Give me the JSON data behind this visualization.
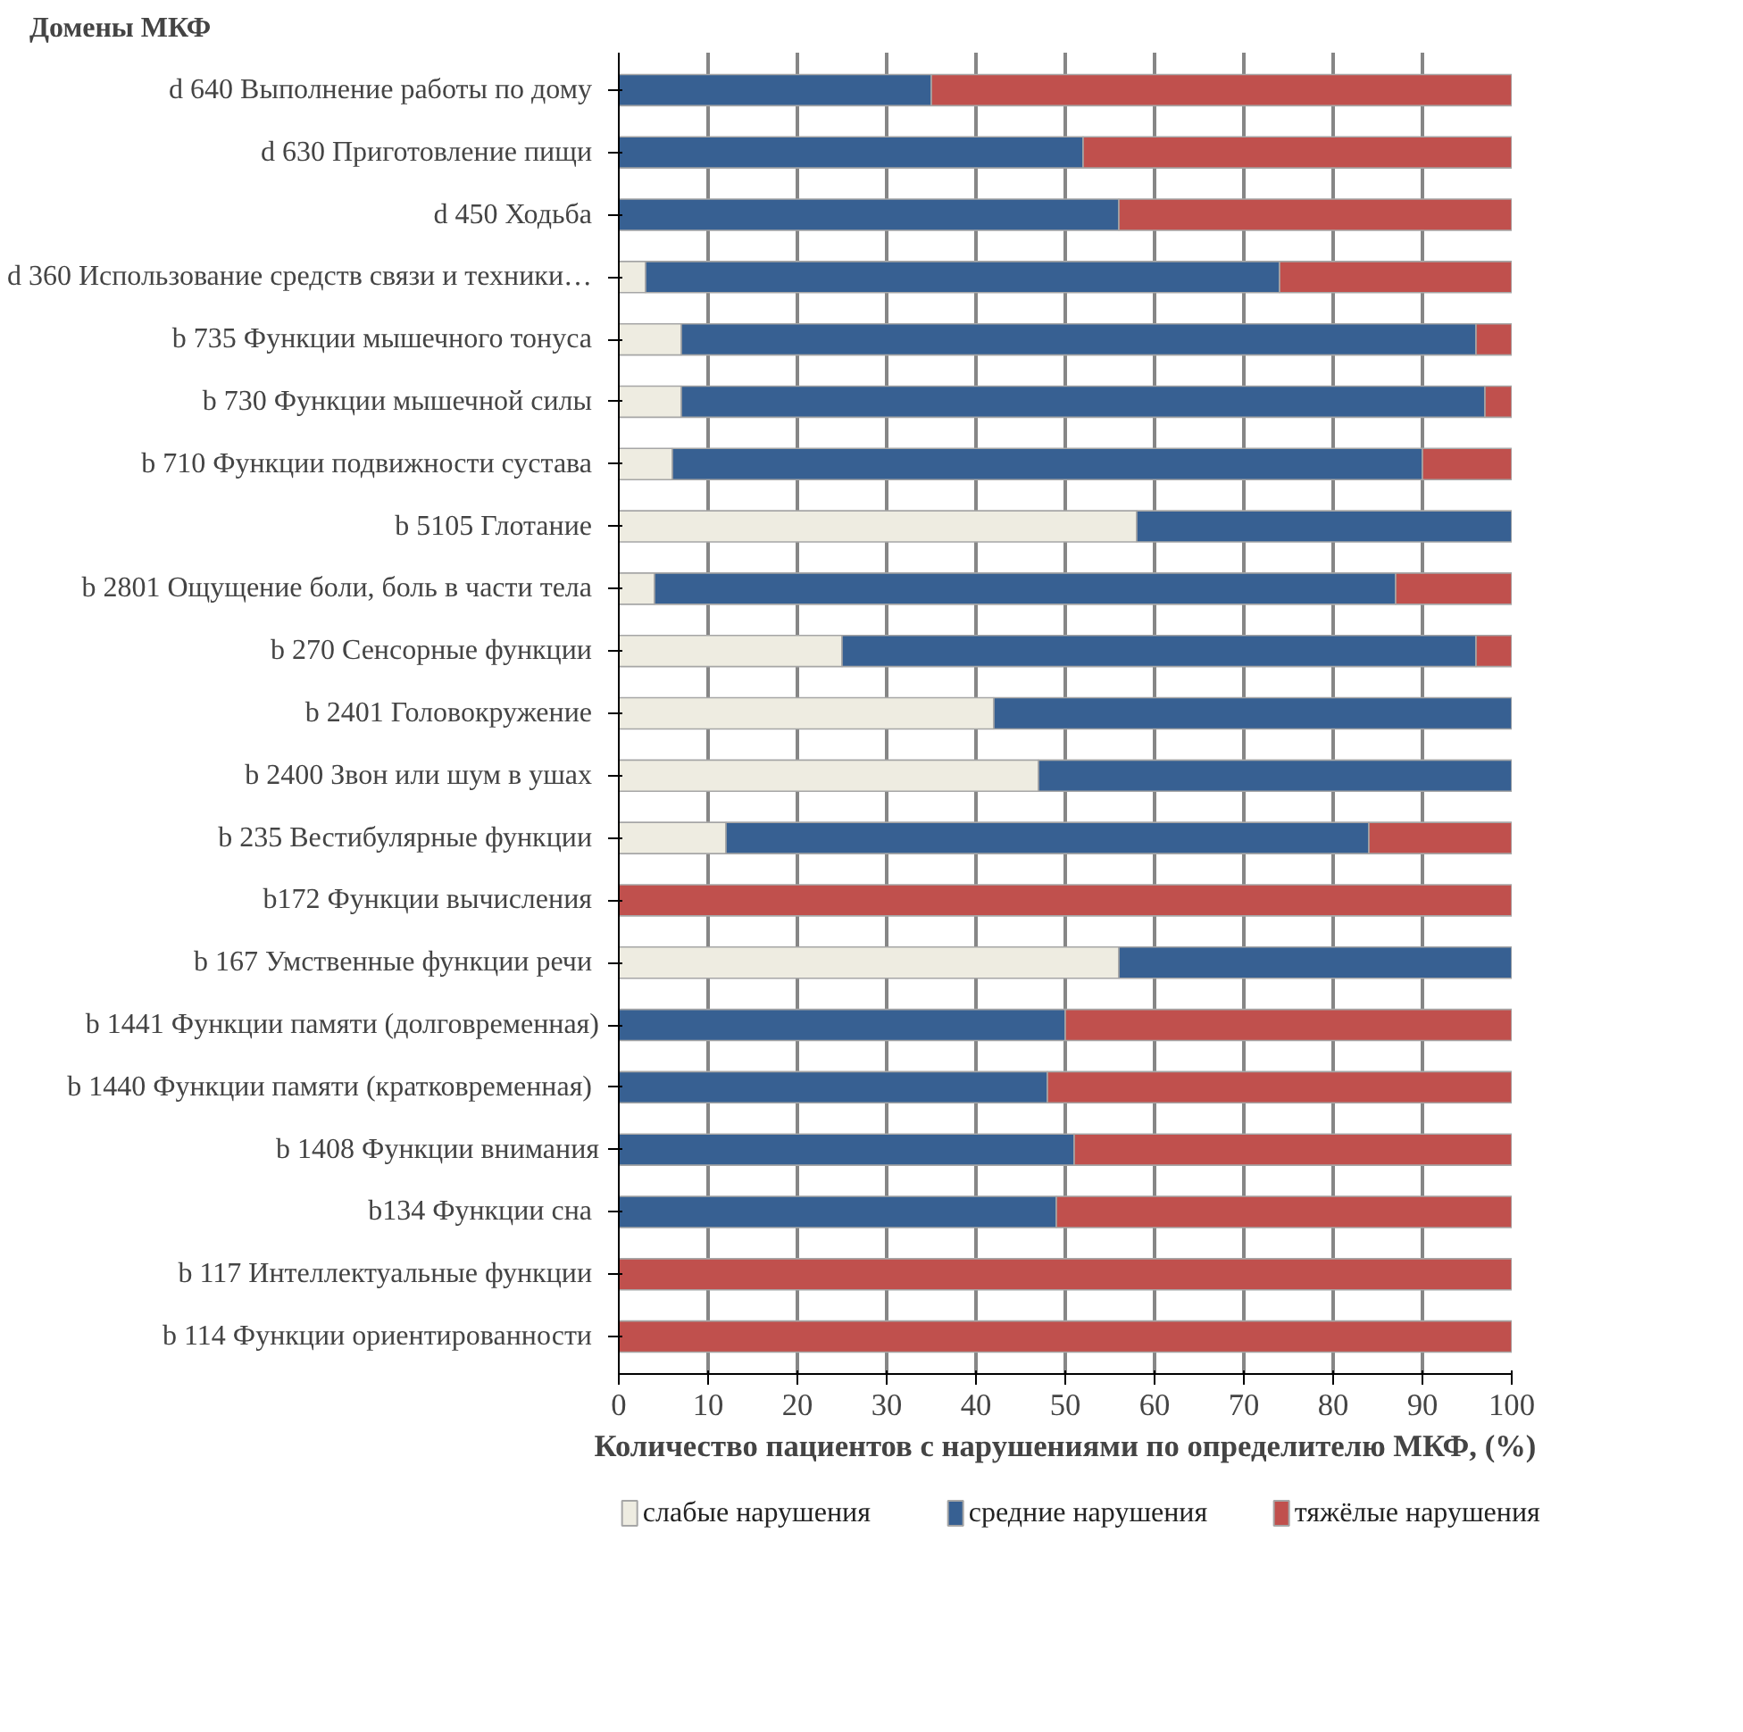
{
  "chart_data": {
    "type": "bar",
    "orientation": "horizontal",
    "stacked": true,
    "ylabel": "Домены МКФ",
    "xlabel": "Количество пациентов с нарушениями по определителю МКФ, (%)",
    "categories": [
      "d 640  Выполнение работы по дому",
      "d 630  Приготовление пищи",
      "d 450  Ходьба",
      "d 360  Использование средств связи и техники…",
      "b 735  Функции мышечного тонуса",
      "b 730  Функции мышечной силы",
      "b 710  Функции подвижности сустава",
      "b 5105  Глотание",
      "b 2801  Ощущение боли, боль в части тела",
      "b 270  Сенсорные функции",
      "b 2401  Головокружение",
      "b 2400  Звон или шум в ушах",
      "b 235  Вестибулярные функции",
      "b172  Функции вычисления",
      "b 167  Умственные функции речи",
      "b 1441 Функции памяти (долговременная)",
      "b 1440  Функции памяти (кратковременная)",
      "b 1408 Функции внимания",
      "b134  Функции сна",
      "b 117  Интеллектуальные функции",
      "b 114  Функции ориентированности"
    ],
    "series": [
      {
        "name": "слабые нарушения",
        "color": "#eeece1",
        "values": [
          0,
          0,
          0,
          3,
          7,
          7,
          6,
          58,
          4,
          25,
          42,
          47,
          12,
          0,
          56,
          0,
          0,
          0,
          0,
          0,
          0
        ]
      },
      {
        "name": "средние нарушения",
        "color": "#376092",
        "values": [
          35,
          52,
          56,
          71,
          89,
          90,
          84,
          42,
          83,
          71,
          58,
          53,
          72,
          0,
          44,
          50,
          48,
          51,
          49,
          0,
          0
        ]
      },
      {
        "name": "тяжёлые нарушения",
        "color": "#c0504d",
        "values": [
          65,
          48,
          44,
          26,
          4,
          3,
          10,
          0,
          13,
          4,
          0,
          0,
          16,
          100,
          0,
          50,
          52,
          49,
          51,
          100,
          100
        ]
      }
    ],
    "xlim": [
      0,
      100
    ],
    "xticks": [
      0,
      10,
      20,
      30,
      40,
      50,
      60,
      70,
      80,
      90,
      100
    ],
    "grid": "x",
    "legend": "bottom"
  }
}
